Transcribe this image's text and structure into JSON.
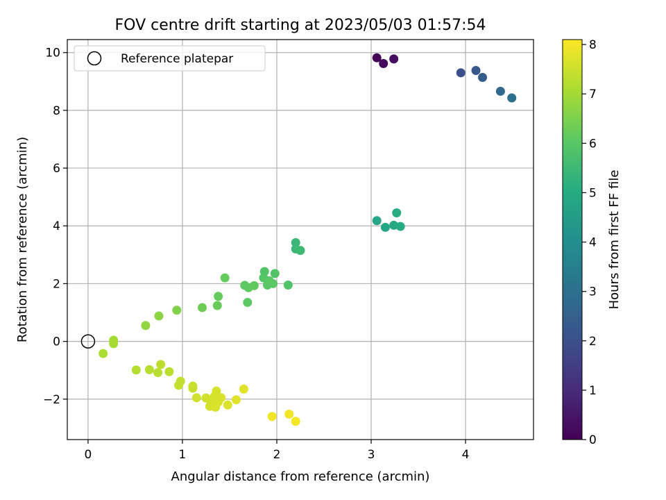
{
  "chart_data": {
    "type": "scatter",
    "title": "FOV centre drift starting at 2023/05/03 01:57:54",
    "xlabel": "Angular distance from reference (arcmin)",
    "ylabel": "Rotation from reference (arcmin)",
    "xlim": [
      -0.22,
      4.72
    ],
    "ylim": [
      -3.4,
      10.45
    ],
    "xticks": [
      0,
      1,
      2,
      3,
      4
    ],
    "yticks": [
      -2,
      0,
      2,
      4,
      6,
      8,
      10
    ],
    "xtick_labels": [
      "0",
      "1",
      "2",
      "3",
      "4"
    ],
    "ytick_labels": [
      "−2",
      "0",
      "2",
      "4",
      "6",
      "8",
      "10"
    ],
    "grid": true,
    "legend": {
      "position": "top-left",
      "entries": [
        "Reference platepar"
      ]
    },
    "reference_point": {
      "x": 0,
      "y": 0,
      "label": "Reference platepar"
    },
    "colorbar": {
      "label": "Hours from first FF file",
      "colormap": "viridis",
      "range": [
        0,
        8.1
      ],
      "ticks": [
        0,
        1,
        2,
        3,
        4,
        5,
        6,
        7,
        8
      ],
      "tick_labels": [
        "0",
        "1",
        "2",
        "3",
        "4",
        "5",
        "6",
        "7",
        "8"
      ]
    },
    "points": [
      {
        "x": 3.06,
        "y": 9.82,
        "h": 0.05
      },
      {
        "x": 3.13,
        "y": 9.62,
        "h": 0.15
      },
      {
        "x": 3.24,
        "y": 9.78,
        "h": 0.3
      },
      {
        "x": 3.95,
        "y": 9.3,
        "h": 2.0
      },
      {
        "x": 4.11,
        "y": 9.38,
        "h": 2.2
      },
      {
        "x": 4.18,
        "y": 9.14,
        "h": 2.4
      },
      {
        "x": 4.37,
        "y": 8.66,
        "h": 2.8
      },
      {
        "x": 4.49,
        "y": 8.43,
        "h": 3.0
      },
      {
        "x": 3.06,
        "y": 4.18,
        "h": 4.8
      },
      {
        "x": 3.15,
        "y": 3.95,
        "h": 4.85
      },
      {
        "x": 3.24,
        "y": 4.02,
        "h": 4.9
      },
      {
        "x": 3.27,
        "y": 4.45,
        "h": 5.0
      },
      {
        "x": 3.31,
        "y": 3.98,
        "h": 4.95
      },
      {
        "x": 2.2,
        "y": 3.42,
        "h": 5.4
      },
      {
        "x": 2.2,
        "y": 3.2,
        "h": 5.45
      },
      {
        "x": 2.25,
        "y": 3.15,
        "h": 5.5
      },
      {
        "x": 1.87,
        "y": 2.42,
        "h": 5.9
      },
      {
        "x": 1.98,
        "y": 2.35,
        "h": 5.9
      },
      {
        "x": 1.86,
        "y": 2.2,
        "h": 5.95
      },
      {
        "x": 1.92,
        "y": 2.1,
        "h": 6.0
      },
      {
        "x": 1.9,
        "y": 1.95,
        "h": 6.0
      },
      {
        "x": 1.96,
        "y": 2.0,
        "h": 6.05
      },
      {
        "x": 2.12,
        "y": 1.95,
        "h": 5.85
      },
      {
        "x": 1.45,
        "y": 2.2,
        "h": 6.2
      },
      {
        "x": 1.66,
        "y": 1.94,
        "h": 6.1
      },
      {
        "x": 1.7,
        "y": 1.86,
        "h": 6.1
      },
      {
        "x": 1.76,
        "y": 1.93,
        "h": 6.15
      },
      {
        "x": 1.38,
        "y": 1.56,
        "h": 6.2
      },
      {
        "x": 1.37,
        "y": 1.24,
        "h": 6.25
      },
      {
        "x": 1.69,
        "y": 1.35,
        "h": 6.1
      },
      {
        "x": 1.21,
        "y": 1.17,
        "h": 6.3
      },
      {
        "x": 0.94,
        "y": 1.08,
        "h": 6.55
      },
      {
        "x": 0.75,
        "y": 0.88,
        "h": 6.7
      },
      {
        "x": 0.61,
        "y": 0.55,
        "h": 6.75
      },
      {
        "x": 0.27,
        "y": 0.04,
        "h": 7.0
      },
      {
        "x": 0.27,
        "y": -0.08,
        "h": 7.05
      },
      {
        "x": 0.16,
        "y": -0.42,
        "h": 7.1
      },
      {
        "x": 0.51,
        "y": -0.99,
        "h": 7.2
      },
      {
        "x": 0.65,
        "y": -0.98,
        "h": 7.25
      },
      {
        "x": 0.74,
        "y": -1.08,
        "h": 7.25
      },
      {
        "x": 0.77,
        "y": -0.8,
        "h": 7.3
      },
      {
        "x": 0.86,
        "y": -1.05,
        "h": 7.3
      },
      {
        "x": 0.98,
        "y": -1.38,
        "h": 7.35
      },
      {
        "x": 0.96,
        "y": -1.52,
        "h": 7.4
      },
      {
        "x": 1.11,
        "y": -1.55,
        "h": 7.45
      },
      {
        "x": 1.11,
        "y": -1.62,
        "h": 7.45
      },
      {
        "x": 1.15,
        "y": -1.95,
        "h": 7.5
      },
      {
        "x": 1.25,
        "y": -1.96,
        "h": 7.55
      },
      {
        "x": 1.29,
        "y": -2.25,
        "h": 7.6
      },
      {
        "x": 1.3,
        "y": -2.05,
        "h": 7.6
      },
      {
        "x": 1.34,
        "y": -1.9,
        "h": 7.6
      },
      {
        "x": 1.36,
        "y": -1.72,
        "h": 7.6
      },
      {
        "x": 1.35,
        "y": -2.28,
        "h": 7.65
      },
      {
        "x": 1.38,
        "y": -2.1,
        "h": 7.65
      },
      {
        "x": 1.41,
        "y": -1.95,
        "h": 7.65
      },
      {
        "x": 1.48,
        "y": -2.2,
        "h": 7.7
      },
      {
        "x": 1.57,
        "y": -2.02,
        "h": 7.75
      },
      {
        "x": 1.65,
        "y": -1.65,
        "h": 7.75
      },
      {
        "x": 1.95,
        "y": -2.6,
        "h": 7.95
      },
      {
        "x": 2.13,
        "y": -2.52,
        "h": 7.95
      },
      {
        "x": 2.2,
        "y": -2.77,
        "h": 8.0
      }
    ]
  }
}
